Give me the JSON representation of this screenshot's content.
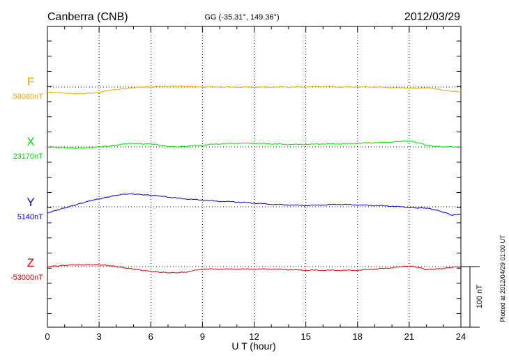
{
  "chart_data": {
    "type": "line",
    "title": "Canberra (CNB)",
    "subtitle": "GG (-35.31°, 149.36°)",
    "date": "2012/03/29",
    "xlabel": "U T (hour)",
    "xlim": [
      0,
      24
    ],
    "xticks": [
      0,
      3,
      6,
      9,
      12,
      15,
      18,
      21,
      24
    ],
    "xtick_labels": [
      "0",
      "3",
      "6",
      "9",
      "12",
      "15",
      "18",
      "21",
      "24"
    ],
    "grid": true,
    "scale_bar_label": "100 nT",
    "scale_bar_nT": 100,
    "plotted_note": "Plotted at 2012/04/29 01:00 UT",
    "colors": {
      "F": "#f0a800",
      "X": "#00d800",
      "Y": "#0000c8",
      "Z": "#d80000"
    },
    "series": [
      {
        "name": "F",
        "baseline_label": "58080nT",
        "baseline_nT": 58080,
        "x": [
          0,
          1,
          1.5,
          2,
          2.5,
          3,
          3.5,
          4,
          4.5,
          5,
          5.5,
          6,
          6.5,
          7,
          7.5,
          8,
          9,
          10,
          11,
          12,
          13,
          14,
          15,
          16,
          17,
          18,
          19,
          20,
          21,
          21.5,
          22,
          22.5,
          23,
          23.5,
          24
        ],
        "values": [
          58072,
          58070,
          58069,
          58069,
          58070,
          58071,
          58074,
          58076,
          58077,
          58079,
          58080,
          58080,
          58081,
          58081,
          58081,
          58081,
          58080,
          58080,
          58080,
          58080,
          58080,
          58080,
          58080,
          58081,
          58080,
          58080,
          58080,
          58079,
          58078,
          58078,
          58079,
          58077,
          58075,
          58073,
          58072
        ]
      },
      {
        "name": "X",
        "baseline_label": "23170nT",
        "baseline_nT": 23170,
        "x": [
          0,
          0.5,
          1,
          1.5,
          2,
          2.5,
          3,
          3.5,
          4,
          4.5,
          5,
          5.5,
          6,
          6.5,
          7,
          7.5,
          8,
          9,
          10,
          11,
          12,
          13,
          14,
          15,
          16,
          17,
          18,
          19,
          20,
          20.5,
          21,
          21.5,
          22,
          22.5,
          23,
          24
        ],
        "values": [
          23170,
          23169,
          23169,
          23168,
          23168,
          23169,
          23170,
          23171,
          23173,
          23175,
          23176,
          23175,
          23175,
          23173,
          23171,
          23170,
          23171,
          23173,
          23175,
          23176,
          23176,
          23175,
          23174,
          23174,
          23175,
          23175,
          23176,
          23177,
          23178,
          23179,
          23180,
          23177,
          23173,
          23171,
          23170,
          23170
        ]
      },
      {
        "name": "Y",
        "baseline_label": "5140nT",
        "baseline_nT": 5140,
        "x": [
          0,
          0.5,
          1,
          1.5,
          2,
          2.5,
          3,
          3.5,
          4,
          4.5,
          5,
          5.5,
          6,
          6.5,
          7,
          8,
          9,
          10,
          11,
          12,
          13,
          14,
          15,
          16,
          17,
          18,
          19,
          20,
          21,
          21.5,
          22,
          22.5,
          23,
          23.5,
          24
        ],
        "values": [
          5130,
          5134,
          5138,
          5142,
          5146,
          5150,
          5153,
          5156,
          5159,
          5161,
          5161,
          5160,
          5159,
          5158,
          5156,
          5153,
          5151,
          5149,
          5148,
          5146,
          5144,
          5143,
          5142,
          5143,
          5144,
          5143,
          5142,
          5141,
          5139,
          5138,
          5138,
          5135,
          5131,
          5126,
          5128
        ]
      },
      {
        "name": "Z",
        "baseline_label": "-53000nT",
        "baseline_nT": -53000,
        "x": [
          0,
          0.5,
          1,
          1.5,
          2,
          2.5,
          3,
          3.5,
          4,
          4.5,
          5,
          5.5,
          6,
          6.5,
          7,
          7.5,
          8,
          9,
          10,
          11,
          12,
          13,
          14,
          15,
          16,
          17,
          18,
          19,
          20,
          20.5,
          21,
          21.5,
          22,
          22.5,
          23,
          23.5,
          24
        ],
        "values": [
          -53000,
          -52999,
          -52998,
          -52997,
          -52997,
          -52997,
          -52997,
          -52998,
          -53000,
          -53002,
          -53004,
          -53006,
          -53008,
          -53009,
          -53010,
          -53010,
          -53009,
          -53004,
          -53004,
          -53004,
          -53004,
          -53004,
          -53005,
          -53006,
          -53006,
          -53006,
          -53006,
          -53004,
          -53002,
          -53000,
          -52999,
          -53001,
          -53005,
          -53004,
          -53003,
          -53001,
          -53000
        ]
      }
    ]
  }
}
